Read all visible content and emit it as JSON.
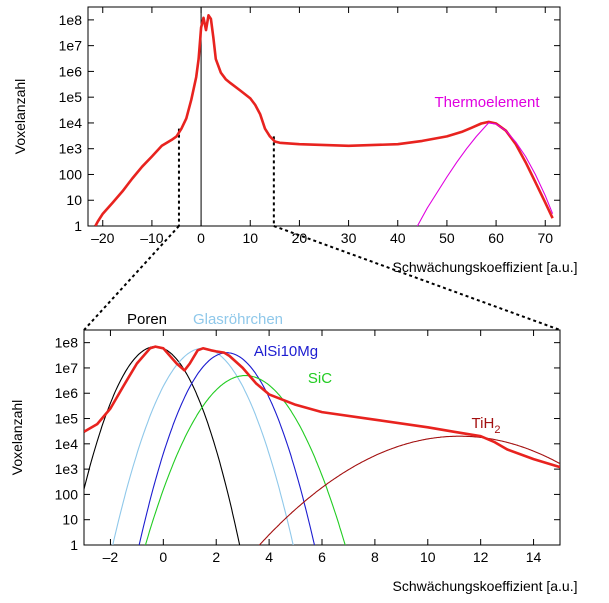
{
  "chart_data": [
    {
      "type": "line",
      "xlabel": "Schwächungskoeffizient [a.u.]",
      "ylabel": "Voxelanzahl",
      "xlim": [
        -23,
        73
      ],
      "ylim_log10": [
        0,
        8.5
      ],
      "log_y": true,
      "grid": false,
      "xticks": [
        -20,
        -10,
        0,
        10,
        20,
        30,
        40,
        50,
        60,
        70
      ],
      "xtick_labels": [
        "–20",
        "–10",
        "0",
        "10",
        "20",
        "30",
        "40",
        "50",
        "60",
        "70"
      ],
      "yticks_log10": [
        0,
        1,
        2,
        3,
        4,
        5,
        6,
        7,
        8
      ],
      "ytick_labels": [
        "1",
        "10",
        "100",
        "1e3",
        "1e4",
        "1e5",
        "1e6",
        "1e7",
        "1e8"
      ],
      "series": [
        {
          "label": "",
          "color": "#e8231f",
          "x": [
            -21.5,
            -21,
            -20,
            -18,
            -16,
            -14,
            -12,
            -10,
            -8,
            -6,
            -5,
            -4,
            -3,
            -2,
            -1,
            -0.5,
            0,
            0.5,
            1,
            1.5,
            2,
            2.5,
            3,
            4,
            5,
            6,
            8,
            10,
            11,
            12,
            13,
            14,
            15,
            16,
            20,
            30,
            40,
            45,
            50,
            53,
            55,
            57,
            58.5,
            60,
            62,
            64,
            66,
            68,
            70,
            71.5
          ],
          "y": [
            1,
            1.5,
            3,
            8,
            22,
            70,
            200,
            500,
            1300,
            2200,
            3000,
            6000,
            15000,
            80000,
            600000,
            3000000,
            50000000,
            120000000,
            40000000,
            150000000,
            110000000,
            20000000,
            3000000,
            900000,
            500000,
            350000,
            180000,
            90000,
            50000,
            22000,
            6000,
            3000,
            1900,
            1700,
            1500,
            1300,
            1500,
            2000,
            3000,
            4500,
            6500,
            9500,
            11000,
            9500,
            5000,
            1500,
            300,
            50,
            8,
            2
          ]
        },
        {
          "label": "Thermoelement",
          "color": "#e000e0",
          "x": [
            44,
            46,
            48,
            50,
            52,
            54,
            56,
            58,
            58.5,
            60,
            62,
            64,
            66,
            68,
            70,
            71.5
          ],
          "y": [
            1,
            5,
            20,
            80,
            300,
            1000,
            3000,
            8000,
            10000,
            9000,
            5000,
            1800,
            500,
            100,
            15,
            3
          ]
        }
      ],
      "markers": [
        {
          "x": -4.5,
          "y": 6000
        },
        {
          "x": 14.8,
          "y": 3000
        }
      ],
      "annotations": [
        {
          "text": "Thermoelement",
          "color": "#e000e0"
        }
      ]
    },
    {
      "type": "line",
      "xlabel": "Schwächungskoeffizient [a.u.]",
      "ylabel": "Voxelanzahl",
      "xlim": [
        -3,
        15
      ],
      "ylim_log10": [
        0,
        8.5
      ],
      "log_y": true,
      "grid": false,
      "xticks": [
        -2,
        0,
        2,
        4,
        6,
        8,
        10,
        12,
        14
      ],
      "xtick_labels": [
        "–2",
        "0",
        "2",
        "4",
        "6",
        "8",
        "10",
        "12",
        "14"
      ],
      "yticks_log10": [
        0,
        1,
        2,
        3,
        4,
        5,
        6,
        7,
        8
      ],
      "ytick_labels": [
        "1",
        "10",
        "100",
        "1e3",
        "1e4",
        "1e5",
        "1e6",
        "1e7",
        "1e8"
      ],
      "series": [
        {
          "label": "Poren",
          "color": "#000000",
          "shape": "gaussian",
          "center": -0.3,
          "peak": 70000000,
          "sigma": 0.53
        },
        {
          "label": "Glasröhrchen",
          "color": "#8fc8ea",
          "shape": "gaussian",
          "center": 1.5,
          "peak": 60000000,
          "sigma": 0.57
        },
        {
          "label": "AlSi10Mg",
          "color": "#1c1cd0",
          "shape": "gaussian",
          "center": 2.4,
          "peak": 40000000,
          "sigma": 0.56
        },
        {
          "label": "SiC",
          "color": "#22cc22",
          "shape": "gaussian",
          "center": 3.1,
          "peak": 5000000,
          "sigma": 0.68
        },
        {
          "label": "TiH2",
          "color": "#a31010",
          "shape": "gaussian",
          "center": 11.2,
          "peak": 20000,
          "sigma": 1.7
        },
        {
          "label": "",
          "color": "#e8231f",
          "x": [
            -3,
            -2.5,
            -2,
            -1.5,
            -1,
            -0.5,
            -0.3,
            0,
            0.5,
            0.8,
            1,
            1.3,
            1.5,
            1.8,
            2,
            2.3,
            2.5,
            3,
            3.5,
            4,
            5,
            6,
            8,
            10,
            11,
            12,
            12.5,
            13,
            14,
            15
          ],
          "y": [
            30000,
            60000,
            250000,
            2000000,
            15000000,
            60000000,
            70000000,
            60000000,
            15000000,
            8000000,
            15000000,
            50000000,
            60000000,
            50000000,
            45000000,
            40000000,
            30000000,
            10000000,
            2500000,
            900000,
            350000,
            180000,
            90000,
            45000,
            30000,
            20000,
            12000,
            6000,
            2500,
            1200
          ]
        }
      ],
      "annotations": [
        {
          "text": "Poren",
          "color": "#000000"
        },
        {
          "text": "Glasröhrchen",
          "color": "#8fc8ea"
        },
        {
          "text": "AlSi10Mg",
          "color": "#1c1cd0"
        },
        {
          "text": "SiC",
          "color": "#22cc22"
        },
        {
          "text": "TiH",
          "sub": "2",
          "color": "#a31010"
        }
      ]
    }
  ]
}
